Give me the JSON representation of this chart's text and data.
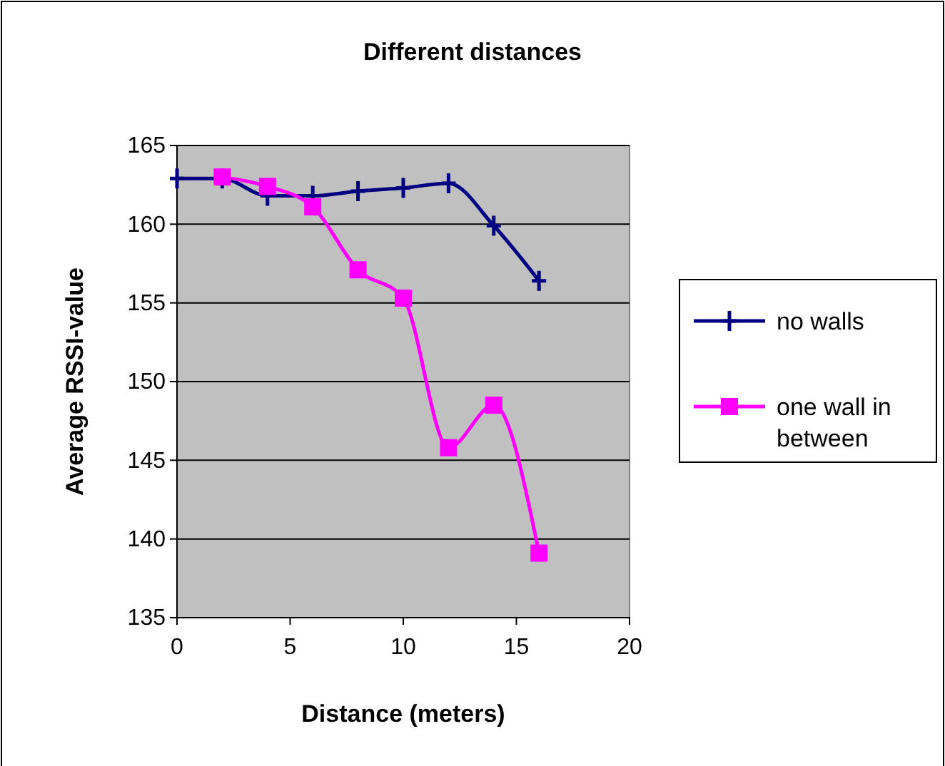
{
  "chart_data": {
    "type": "line",
    "title": "Different distances",
    "xlabel": "Distance (meters)",
    "ylabel": "Average RSSI-value",
    "xlim": [
      0,
      20
    ],
    "xticks": [
      0,
      5,
      10,
      15,
      20
    ],
    "ylim": [
      135,
      165
    ],
    "yticks": [
      135,
      140,
      145,
      150,
      155,
      160,
      165
    ],
    "grid": "y",
    "legend": "right",
    "series": [
      {
        "name": "no walls",
        "color": "#000080",
        "marker": "cross",
        "x": [
          0,
          2,
          4,
          6,
          8,
          10,
          12,
          14,
          16
        ],
        "values": [
          162.9,
          162.9,
          161.8,
          161.8,
          162.1,
          162.3,
          162.6,
          159.9,
          156.4
        ]
      },
      {
        "name": "one wall in between",
        "color": "#ff00ff",
        "marker": "square",
        "x": [
          2,
          4,
          6,
          8,
          10,
          12,
          14,
          16
        ],
        "values": [
          163.0,
          162.4,
          161.1,
          157.1,
          155.3,
          145.8,
          148.5,
          139.1
        ]
      }
    ]
  }
}
